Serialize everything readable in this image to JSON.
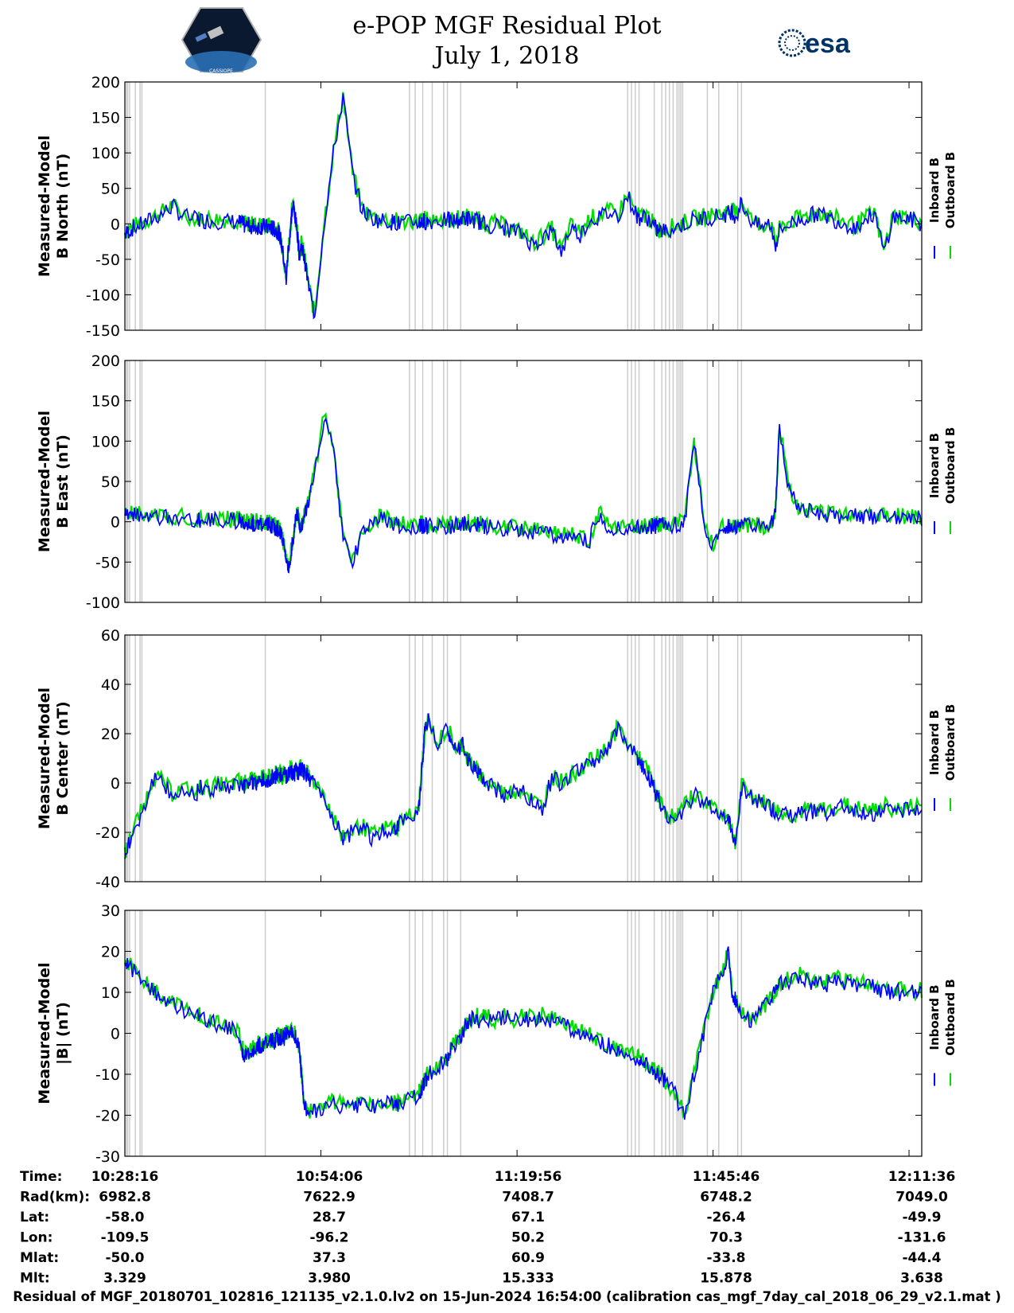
{
  "header": {
    "title_line1": "e-POP MGF Residual Plot",
    "title_line2": "July 1, 2018",
    "left_logo": "cassiope-mission-logo",
    "left_logo_text": "CASSIOPE",
    "right_logo_text": "esa"
  },
  "colors": {
    "inboard": "#0000ff",
    "outboard": "#00dd00",
    "gap": "#cccccc"
  },
  "legend": {
    "inboard": "Inboard B",
    "outboard": "Outboard B"
  },
  "chart_data": [
    {
      "type": "line",
      "ylabel": [
        "Measured-Model",
        "B North (nT)"
      ],
      "ylim": [
        -150,
        200
      ],
      "yticks": [
        200,
        150,
        100,
        50,
        0,
        -50,
        -100,
        -150
      ],
      "x": [
        0,
        2,
        5,
        10,
        15,
        20,
        25,
        30,
        38,
        40,
        45,
        50,
        55,
        60,
        62,
        63,
        65,
        67,
        68,
        70,
        72,
        73,
        75,
        76,
        77,
        78,
        79,
        80,
        81,
        82,
        83,
        84,
        85,
        86,
        87,
        88,
        89,
        90,
        91,
        92,
        93,
        94,
        95,
        97,
        100,
        105,
        110,
        115,
        120,
        125,
        130,
        135,
        140,
        143,
        145,
        150,
        155,
        156,
        157,
        158,
        160,
        165,
        170,
        172,
        175,
        178,
        180,
        182,
        185,
        187,
        190,
        195,
        200,
        205,
        210,
        215,
        220,
        225,
        230,
        235,
        240,
        245,
        250,
        255,
        260,
        265,
        270,
        272,
        275,
        278,
        280,
        282,
        285,
        290,
        295,
        300,
        305,
        310,
        315,
        318,
        320,
        322,
        325,
        330,
        335,
        340,
        343,
        345,
        350,
        355,
        360,
        365,
        370,
        375,
        380,
        385,
        390,
        395,
        400,
        405,
        410,
        415,
        420
      ],
      "series": [
        {
          "values": [
            -15,
            -10,
            -5,
            0,
            8,
            15,
            25,
            12,
            5,
            5,
            5,
            4,
            3,
            3,
            0,
            -2,
            -2,
            -3,
            -3,
            -4,
            -4,
            -4,
            -5,
            -5,
            -6,
            -7,
            -8,
            -10,
            -12,
            -20,
            -35,
            -55,
            -80,
            -40,
            -15,
            15,
            25,
            5,
            -15,
            -45,
            -30,
            -40,
            -55,
            -90,
            -130,
            0,
            100,
            180,
            70,
            20,
            8,
            5,
            3,
            2,
            0,
            2,
            3,
            3,
            2,
            4,
            3,
            5,
            5,
            3,
            5,
            7,
            8,
            6,
            5,
            3,
            -2,
            -2,
            -5,
            -10,
            -15,
            -30,
            -20,
            -10,
            -40,
            -5,
            -15,
            5,
            10,
            15,
            12,
            40,
            10,
            8,
            10,
            0,
            -8,
            -10,
            -10,
            -5,
            0,
            5,
            8,
            10,
            12,
            15,
            18,
            10,
            30,
            5,
            -5,
            0,
            -30,
            -10,
            0,
            5,
            10,
            15,
            10,
            5,
            0,
            -5,
            5,
            15,
            -40,
            10,
            8,
            5,
            0
          ]
        }
      ],
      "gaps": [
        0.8,
        1.5,
        2.5,
        5.5,
        8,
        9,
        74,
        150,
        153,
        157,
        162,
        168,
        170,
        177,
        265,
        267,
        269,
        271,
        279,
        283,
        285,
        287,
        289,
        291,
        292,
        293,
        294,
        307,
        313,
        323,
        325
      ]
    },
    {
      "type": "line",
      "ylabel": [
        "Measured-Model",
        "B East (nT)"
      ],
      "ylim": [
        -100,
        200
      ],
      "yticks": [
        200,
        150,
        100,
        50,
        0,
        -50,
        -100
      ],
      "x": [
        0,
        2,
        5,
        10,
        15,
        20,
        25,
        30,
        38,
        40,
        45,
        50,
        55,
        60,
        62,
        63,
        65,
        67,
        68,
        70,
        72,
        73,
        75,
        76,
        77,
        78,
        79,
        80,
        81,
        82,
        83,
        84,
        85,
        86,
        87,
        88,
        89,
        90,
        91,
        92,
        93,
        94,
        95,
        97,
        100,
        105,
        110,
        115,
        120,
        125,
        130,
        135,
        140,
        143,
        145,
        150,
        155,
        156,
        157,
        158,
        160,
        165,
        170,
        172,
        175,
        178,
        180,
        182,
        185,
        187,
        190,
        195,
        200,
        205,
        210,
        215,
        220,
        225,
        230,
        235,
        240,
        245,
        250,
        255,
        260,
        265,
        270,
        272,
        275,
        278,
        280,
        282,
        285,
        290,
        295,
        300,
        305,
        310,
        315,
        318,
        320,
        322,
        325,
        330,
        335,
        340,
        343,
        345,
        350,
        355,
        360,
        365,
        370,
        375,
        380,
        385,
        390,
        395,
        400,
        405,
        410,
        415,
        420
      ],
      "series": [
        {
          "values": [
            8,
            8,
            8,
            7,
            6,
            5,
            5,
            4,
            3,
            3,
            2,
            2,
            1,
            1,
            0,
            0,
            -1,
            -2,
            -2,
            -2,
            -3,
            -3,
            -4,
            -4,
            -4,
            -5,
            -6,
            -8,
            -10,
            -15,
            -20,
            -30,
            -45,
            -60,
            -50,
            -30,
            -15,
            0,
            10,
            -5,
            -5,
            0,
            10,
            30,
            60,
            130,
            90,
            -20,
            -50,
            -15,
            -5,
            5,
            0,
            -3,
            -5,
            -5,
            -6,
            -4,
            -5,
            -4,
            -6,
            -5,
            -6,
            -5,
            -4,
            -3,
            -2,
            -3,
            -4,
            -5,
            -6,
            -7,
            -8,
            -9,
            -10,
            -12,
            -14,
            -16,
            -18,
            -18,
            -20,
            -22,
            10,
            -10,
            -10,
            -9,
            -8,
            -8,
            -7,
            -6,
            -5,
            -5,
            -4,
            -3,
            0,
            100,
            0,
            -30,
            -5,
            -5,
            -5,
            -5,
            -5,
            -6,
            -7,
            -8,
            15,
            120,
            40,
            15,
            12,
            10,
            8,
            8,
            7,
            7,
            6,
            6,
            5,
            5,
            5,
            5,
            5
          ]
        }
      ],
      "gaps": [
        0.8,
        1.5,
        2.5,
        5.5,
        8,
        9,
        74,
        150,
        153,
        157,
        162,
        168,
        170,
        177,
        265,
        267,
        269,
        271,
        279,
        283,
        285,
        287,
        289,
        291,
        292,
        293,
        294,
        307,
        313,
        323,
        325
      ]
    },
    {
      "type": "line",
      "ylabel": [
        "Measured-Model",
        "B Center (nT)"
      ],
      "ylim": [
        -40,
        60
      ],
      "yticks": [
        60,
        40,
        20,
        0,
        -20,
        -40
      ],
      "x": [
        0,
        2,
        5,
        10,
        15,
        20,
        25,
        30,
        38,
        40,
        45,
        50,
        55,
        60,
        62,
        63,
        65,
        67,
        68,
        70,
        72,
        73,
        75,
        76,
        77,
        78,
        79,
        80,
        81,
        82,
        83,
        84,
        85,
        86,
        87,
        88,
        89,
        90,
        91,
        92,
        93,
        94,
        95,
        97,
        100,
        105,
        110,
        115,
        120,
        125,
        130,
        135,
        140,
        143,
        145,
        150,
        155,
        156,
        157,
        158,
        160,
        165,
        170,
        172,
        175,
        178,
        180,
        182,
        185,
        187,
        190,
        195,
        200,
        205,
        210,
        215,
        220,
        225,
        230,
        235,
        240,
        245,
        250,
        255,
        260,
        265,
        270,
        272,
        275,
        278,
        280,
        282,
        285,
        290,
        295,
        300,
        305,
        310,
        315,
        318,
        320,
        322,
        325,
        330,
        335,
        340,
        343,
        345,
        350,
        355,
        360,
        365,
        370,
        375,
        380,
        385,
        390,
        395,
        400,
        405,
        410,
        415,
        420
      ],
      "series": [
        {
          "values": [
            -30,
            -25,
            -18,
            -10,
            2,
            0,
            -5,
            -3,
            -4,
            -2,
            -3,
            -1,
            -2,
            0,
            -1,
            -1,
            1,
            0,
            1,
            0,
            1,
            2,
            0,
            2,
            1,
            3,
            2,
            4,
            2,
            3,
            2,
            4,
            2,
            3,
            4,
            5,
            3,
            5,
            4,
            5,
            6,
            5,
            4,
            2,
            0,
            -5,
            -15,
            -22,
            -20,
            -18,
            -22,
            -20,
            -18,
            -20,
            -16,
            -14,
            -10,
            0,
            10,
            20,
            25,
            15,
            22,
            18,
            12,
            16,
            10,
            8,
            5,
            3,
            0,
            -2,
            -5,
            -4,
            -3,
            -8,
            -10,
            2,
            0,
            3,
            5,
            8,
            10,
            15,
            22,
            15,
            10,
            8,
            5,
            0,
            -5,
            -8,
            -12,
            -15,
            -10,
            -5,
            -8,
            -10,
            -12,
            -15,
            -20,
            -25,
            -2,
            -5,
            -8,
            -10,
            -12,
            -12,
            -14,
            -13,
            -12,
            -11,
            -12,
            -10,
            -10,
            -11,
            -12,
            -12,
            -10,
            -11,
            -12,
            -10,
            -10
          ]
        }
      ],
      "gaps": [
        0.8,
        1.5,
        2.5,
        5.5,
        8,
        9,
        74,
        150,
        153,
        157,
        162,
        168,
        170,
        177,
        265,
        267,
        269,
        271,
        279,
        283,
        285,
        287,
        289,
        291,
        292,
        293,
        294,
        307,
        313,
        323,
        325
      ]
    },
    {
      "type": "line",
      "ylabel": [
        "Measured-Model",
        "|B| (nT)"
      ],
      "ylim": [
        -30,
        30
      ],
      "yticks": [
        30,
        20,
        10,
        0,
        -10,
        -20,
        -30
      ],
      "x": [
        0,
        2,
        5,
        10,
        15,
        20,
        25,
        30,
        38,
        40,
        45,
        50,
        55,
        60,
        62,
        63,
        65,
        67,
        68,
        70,
        72,
        73,
        75,
        76,
        77,
        78,
        79,
        80,
        81,
        82,
        83,
        84,
        85,
        86,
        87,
        88,
        89,
        90,
        91,
        92,
        93,
        94,
        95,
        97,
        100,
        105,
        110,
        115,
        120,
        125,
        130,
        135,
        140,
        143,
        145,
        150,
        155,
        156,
        157,
        158,
        160,
        165,
        170,
        172,
        175,
        178,
        180,
        182,
        185,
        187,
        190,
        195,
        200,
        205,
        210,
        215,
        220,
        225,
        230,
        235,
        240,
        245,
        250,
        255,
        260,
        265,
        270,
        272,
        275,
        278,
        280,
        282,
        285,
        290,
        295,
        300,
        305,
        310,
        315,
        318,
        320,
        322,
        325,
        330,
        335,
        340,
        343,
        345,
        350,
        355,
        360,
        365,
        370,
        375,
        380,
        385,
        390,
        395,
        400,
        405,
        410,
        415,
        420
      ],
      "series": [
        {
          "values": [
            18,
            17,
            15,
            12,
            10,
            8,
            7,
            6,
            5,
            4,
            3,
            2,
            1,
            0,
            -4,
            -5,
            -5,
            -4,
            -4,
            -3,
            -3,
            -3,
            -2,
            -2,
            -2,
            -2,
            -2,
            -1,
            -1,
            -1,
            -1,
            -1,
            0,
            0,
            0,
            0,
            0,
            -1,
            -2,
            -5,
            -10,
            -15,
            -18,
            -20,
            -19,
            -18,
            -17,
            -18,
            -18,
            -17,
            -18,
            -18,
            -17,
            -18,
            -17,
            -16,
            -15,
            -14,
            -13,
            -12,
            -10,
            -8,
            -6,
            -4,
            -2,
            0,
            2,
            3,
            4,
            3,
            4,
            3,
            4,
            3,
            4,
            3,
            4,
            3,
            2,
            1,
            0,
            -1,
            -2,
            -3,
            -4,
            -5,
            -6,
            -7,
            -8,
            -9,
            -10,
            -10,
            -12,
            -15,
            -20,
            -10,
            0,
            10,
            15,
            20,
            10,
            8,
            5,
            3,
            5,
            8,
            10,
            12,
            13,
            14,
            13,
            12,
            12,
            13,
            12,
            12,
            12,
            11,
            10,
            10,
            10,
            10,
            10
          ]
        }
      ],
      "gaps": [
        0.8,
        1.5,
        2.5,
        5.5,
        8,
        9,
        74,
        150,
        153,
        157,
        162,
        168,
        170,
        177,
        265,
        267,
        269,
        271,
        279,
        283,
        285,
        287,
        289,
        291,
        292,
        293,
        294,
        307,
        313,
        323,
        325
      ]
    }
  ],
  "table": {
    "rows": [
      {
        "label": "Time:",
        "values": [
          "10:28:16",
          "10:54:06",
          "11:19:56",
          "11:45:46",
          "12:11:36"
        ]
      },
      {
        "label": "Rad(km):",
        "values": [
          "6982.8",
          "7622.9",
          "7408.7",
          "6748.2",
          "7049.0"
        ]
      },
      {
        "label": "Lat:",
        "values": [
          "-58.0",
          "28.7",
          "67.1",
          "-26.4",
          "-49.9"
        ]
      },
      {
        "label": "Lon:",
        "values": [
          "-109.5",
          "-96.2",
          "50.2",
          "70.3",
          "-131.6"
        ]
      },
      {
        "label": "Mlat:",
        "values": [
          "-50.0",
          "37.3",
          "60.9",
          "-33.8",
          "-44.4"
        ]
      },
      {
        "label": "Mlt:",
        "values": [
          "3.329",
          "3.980",
          "15.333",
          "15.878",
          "3.638"
        ]
      }
    ]
  },
  "footer": "Residual of MGF_20180701_102816_121135_v2.1.0.lv2 on 15-Jun-2024 16:54:00 (calibration cas_mgf_7day_cal_2018_06_29_v2.1.mat )"
}
